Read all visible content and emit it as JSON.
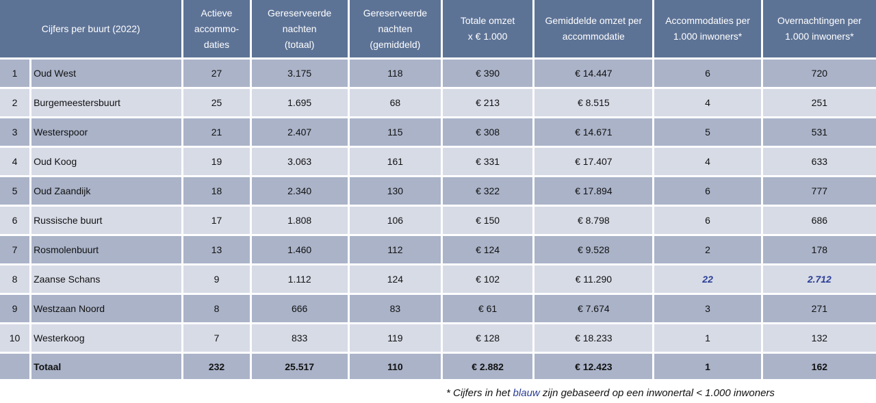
{
  "header": {
    "col_title": "Cijfers per buurt (2022)",
    "actieve_l1": "Actieve",
    "actieve_l2": "accommo-",
    "actieve_l3": "daties",
    "gn_totaal_l1": "Gereserveerde",
    "gn_totaal_l2": "nachten",
    "gn_totaal_l3": "(totaal)",
    "gn_gem_l1": "Gereserveerde",
    "gn_gem_l2": "nachten",
    "gn_gem_l3": "(gemiddeld)",
    "omzet_l1": "Totale omzet",
    "omzet_l2": "x € 1.000",
    "gem_omzet_l1": "Gemiddelde omzet per",
    "gem_omzet_l2": "accommodatie",
    "acc_per_l1": "Accommodaties per",
    "acc_per_l2": "1.000 inwoners*",
    "overn_per_l1": "Overnachtingen per",
    "overn_per_l2": "1.000 inwoners*"
  },
  "rows": [
    {
      "nr": "1",
      "buurt": "Oud West",
      "actieve": "27",
      "gn_totaal": "3.175",
      "gn_gem": "118",
      "omzet": "€ 390",
      "gem_omzet": "€ 14.447",
      "acc_per": "6",
      "overn_per": "720"
    },
    {
      "nr": "2",
      "buurt": "Burgemeestersbuurt",
      "actieve": "25",
      "gn_totaal": "1.695",
      "gn_gem": "68",
      "omzet": "€ 213",
      "gem_omzet": "€ 8.515",
      "acc_per": "4",
      "overn_per": "251"
    },
    {
      "nr": "3",
      "buurt": "Westerspoor",
      "actieve": "21",
      "gn_totaal": "2.407",
      "gn_gem": "115",
      "omzet": "€ 308",
      "gem_omzet": "€ 14.671",
      "acc_per": "5",
      "overn_per": "531"
    },
    {
      "nr": "4",
      "buurt": "Oud Koog",
      "actieve": "19",
      "gn_totaal": "3.063",
      "gn_gem": "161",
      "omzet": "€ 331",
      "gem_omzet": "€ 17.407",
      "acc_per": "4",
      "overn_per": "633"
    },
    {
      "nr": "5",
      "buurt": "Oud Zaandijk",
      "actieve": "18",
      "gn_totaal": "2.340",
      "gn_gem": "130",
      "omzet": "€ 322",
      "gem_omzet": "€ 17.894",
      "acc_per": "6",
      "overn_per": "777"
    },
    {
      "nr": "6",
      "buurt": "Russische buurt",
      "actieve": "17",
      "gn_totaal": "1.808",
      "gn_gem": "106",
      "omzet": "€ 150",
      "gem_omzet": "€ 8.798",
      "acc_per": "6",
      "overn_per": "686"
    },
    {
      "nr": "7",
      "buurt": "Rosmolenbuurt",
      "actieve": "13",
      "gn_totaal": "1.460",
      "gn_gem": "112",
      "omzet": "€ 124",
      "gem_omzet": "€ 9.528",
      "acc_per": "2",
      "overn_per": "178"
    },
    {
      "nr": "8",
      "buurt": "Zaanse Schans",
      "actieve": "9",
      "gn_totaal": "1.112",
      "gn_gem": "124",
      "omzet": "€ 102",
      "gem_omzet": "€ 11.290",
      "acc_per": "22",
      "overn_per": "2.712"
    },
    {
      "nr": "9",
      "buurt": "Westzaan Noord",
      "actieve": "8",
      "gn_totaal": "666",
      "gn_gem": "83",
      "omzet": "€ 61",
      "gem_omzet": "€ 7.674",
      "acc_per": "3",
      "overn_per": "271"
    },
    {
      "nr": "10",
      "buurt": "Westerkoog",
      "actieve": "7",
      "gn_totaal": "833",
      "gn_gem": "119",
      "omzet": "€ 128",
      "gem_omzet": "€ 18.233",
      "acc_per": "1",
      "overn_per": "132"
    }
  ],
  "total": {
    "label": "Totaal",
    "actieve": "232",
    "gn_totaal": "25.517",
    "gn_gem": "110",
    "omzet": "€ 2.882",
    "gem_omzet": "€ 12.423",
    "acc_per": "1",
    "overn_per": "162"
  },
  "colors": {
    "header_bg": "#5d7396",
    "row_dark": "#aab3c8",
    "row_light": "#d7dbe6",
    "highlight_blue": "#2b3e95"
  },
  "footnote": {
    "part1": "* Cijfers in het ",
    "blauw": "blauw",
    "part2": " zijn gebaseerd op een inwonertal < 1.000 inwoners"
  }
}
